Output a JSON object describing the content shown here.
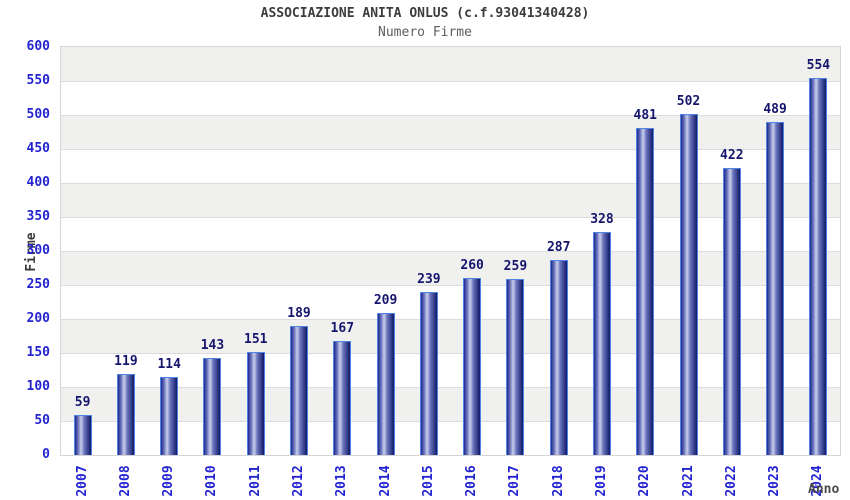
{
  "header": {
    "title": "ASSOCIAZIONE ANITA ONLUS (c.f.93041340428)",
    "subtitle": "Numero Firme"
  },
  "chart_data": {
    "type": "bar",
    "title": "ASSOCIAZIONE ANITA ONLUS (c.f.93041340428)",
    "subtitle": "Numero Firme",
    "xlabel": "Anno",
    "ylabel": "Firme",
    "categories": [
      "2007",
      "2008",
      "2009",
      "2010",
      "2011",
      "2012",
      "2013",
      "2014",
      "2015",
      "2016",
      "2017",
      "2018",
      "2019",
      "2020",
      "2021",
      "2022",
      "2023",
      "2024"
    ],
    "values": [
      59,
      119,
      114,
      143,
      151,
      189,
      167,
      209,
      239,
      260,
      259,
      287,
      328,
      481,
      502,
      422,
      489,
      554
    ],
    "ylim": [
      0,
      600
    ],
    "ytick_step": 50,
    "grid": true,
    "legend": "none",
    "value_labels_shown": true,
    "colors": {
      "tick_label": "#2323d2",
      "value_label": "#15156e",
      "band": "#f0f0ef",
      "band_alt": "#ffffff",
      "gridline": "#dcdcdc",
      "bar_edge_dark": "#1f288c",
      "bar_mid_light": "#c9cfeb",
      "bar_edge_dark2": "#111968",
      "bar_border": "#4e85e2",
      "title": "#3c3c3c",
      "subtitle": "#5e5e5e",
      "axis_title": "#3a3a3a"
    }
  }
}
